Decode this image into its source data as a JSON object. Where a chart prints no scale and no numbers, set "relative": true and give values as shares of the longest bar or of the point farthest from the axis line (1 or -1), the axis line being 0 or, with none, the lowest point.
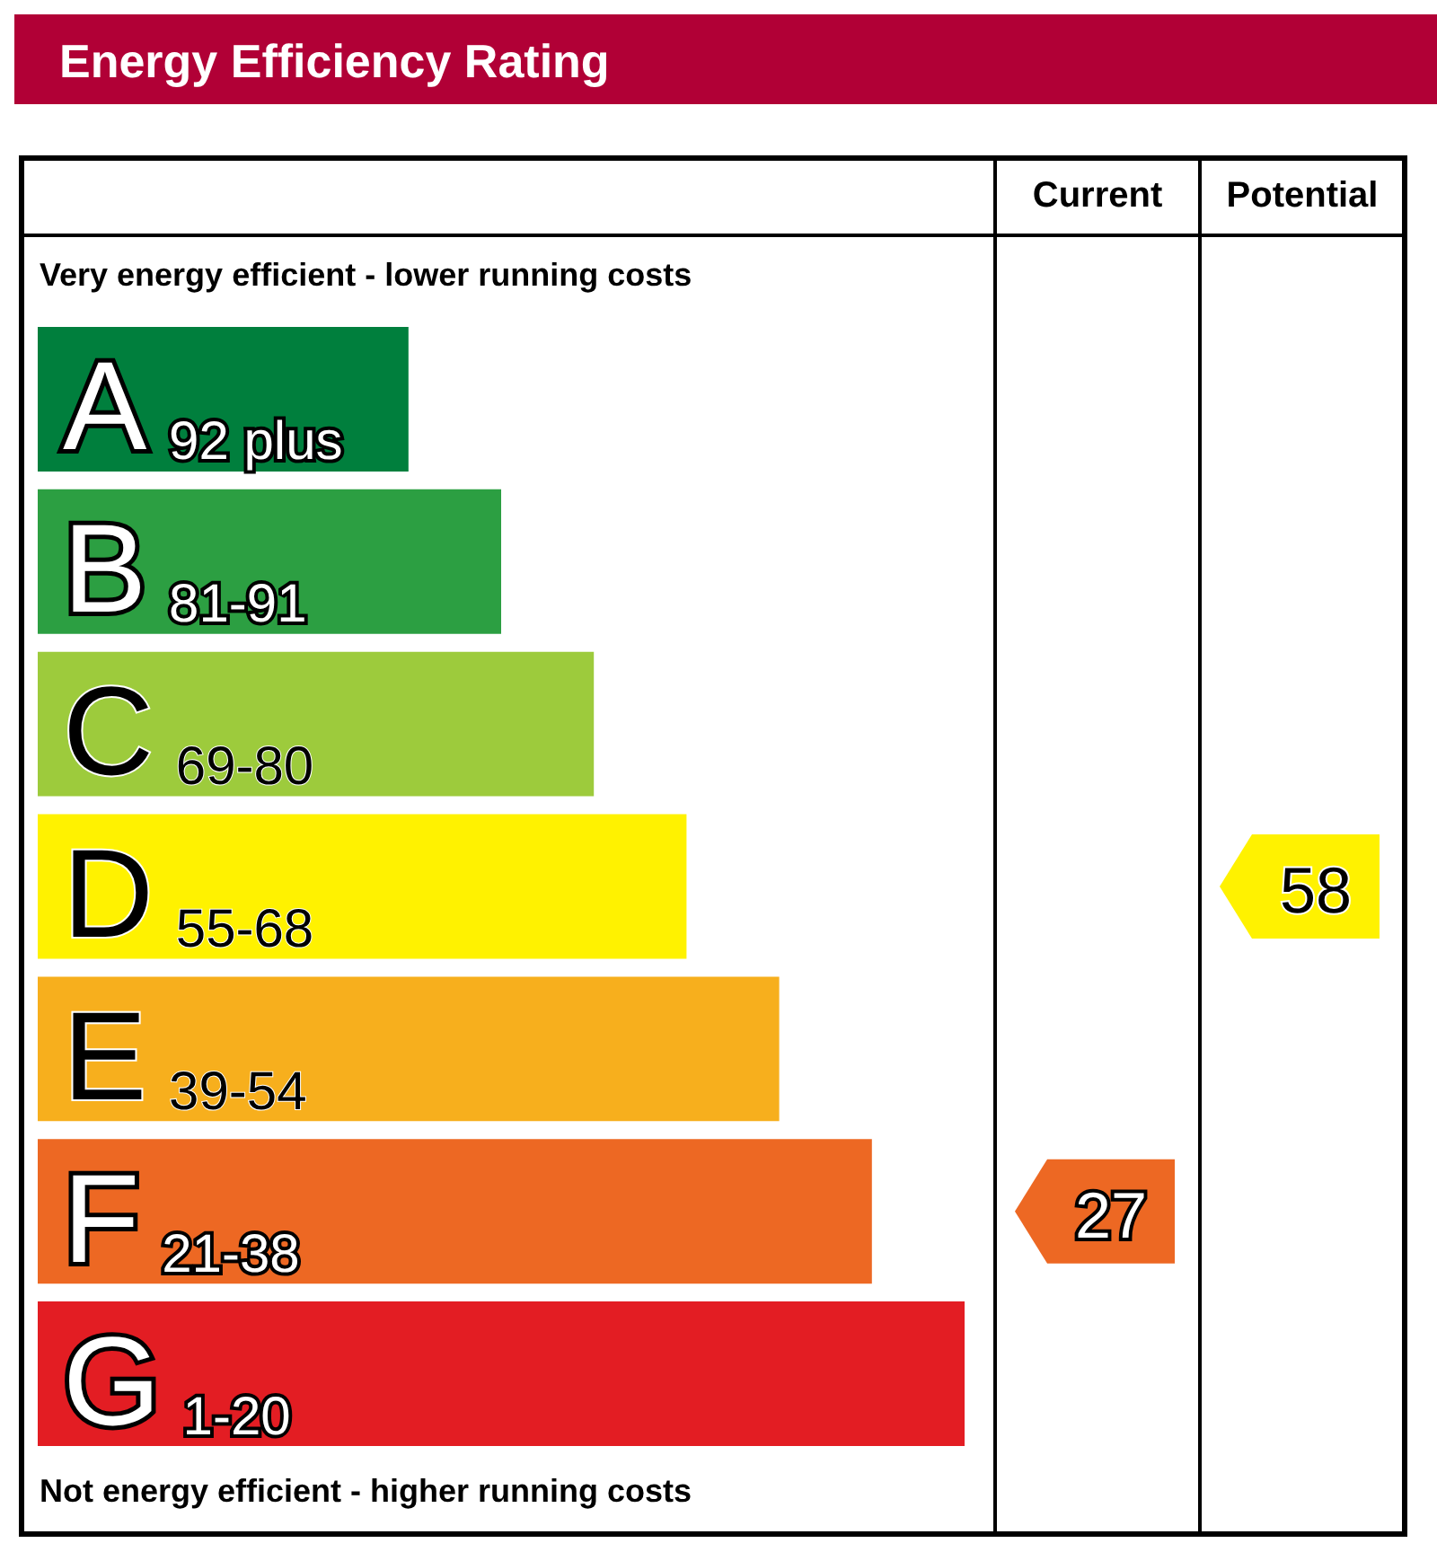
{
  "chart_data": {
    "type": "bar",
    "title": "Energy Efficiency Rating",
    "orientation": "horizontal",
    "relative": true,
    "categories": [
      "A 92 plus",
      "B 81-91",
      "C 69-80",
      "D 55-68",
      "E 39-54",
      "F 21-38",
      "G 1-20"
    ],
    "values": [
      0.4,
      0.5,
      0.6,
      0.7,
      0.8,
      0.9,
      1.0
    ],
    "colors": [
      "#007f3d",
      "#2c9f42",
      "#9dcb3c",
      "#fff200",
      "#f7af1d",
      "#ed6823",
      "#e31d23"
    ],
    "annotations": [
      "Current",
      "Potential",
      "Very energy efficient - lower running costs",
      "Not energy efficient - higher running costs",
      "27",
      "58"
    ]
  }
}
